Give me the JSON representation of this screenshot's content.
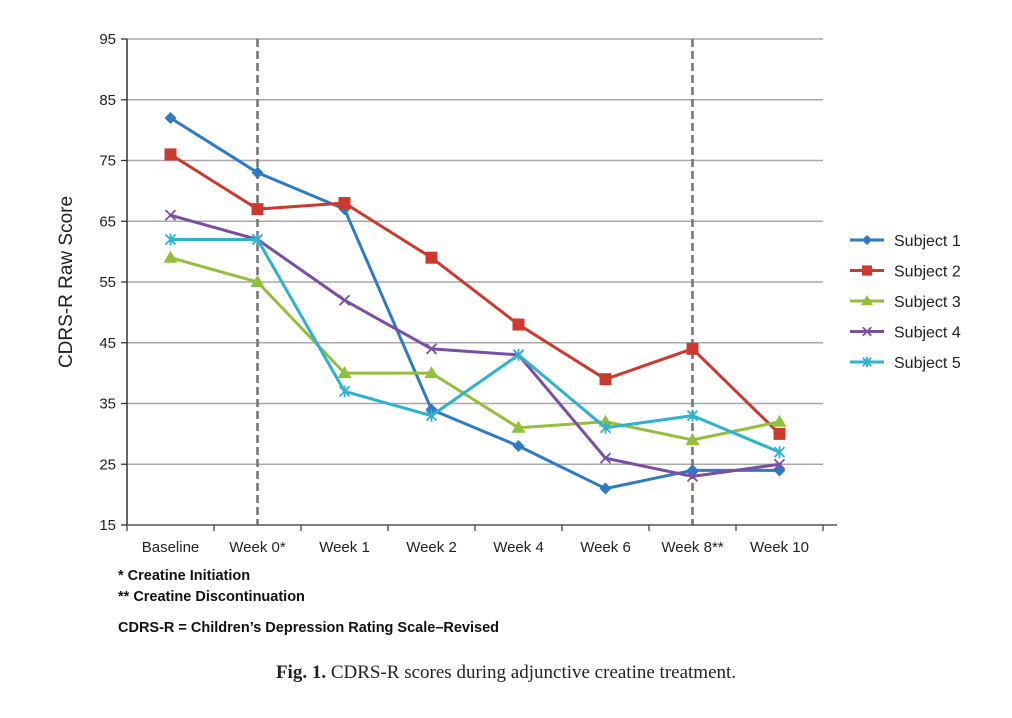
{
  "chart_data": {
    "type": "line",
    "title": "",
    "xlabel": "",
    "ylabel": "CDRS-R Raw Score",
    "ylim": [
      15,
      95
    ],
    "yticks": [
      15,
      25,
      35,
      45,
      55,
      65,
      75,
      85,
      95
    ],
    "grid": true,
    "legend_position": "right",
    "categories": [
      "Baseline",
      "Week 0*",
      "Week 1",
      "Week 2",
      "Week 4",
      "Week 6",
      "Week 8**",
      "Week 10"
    ],
    "reference_lines": [
      {
        "category": "Week 0*",
        "style": "dashed",
        "meaning": "Creatine Initiation"
      },
      {
        "category": "Week 8**",
        "style": "dashed",
        "meaning": "Creatine Discontinuation"
      }
    ],
    "series": [
      {
        "name": "Subject 1",
        "color": "#2f7ac2",
        "marker": "diamond",
        "values": [
          82,
          73,
          67,
          34,
          28,
          21,
          24,
          24
        ]
      },
      {
        "name": "Subject 2",
        "color": "#cc3a2f",
        "marker": "square",
        "values": [
          76,
          67,
          68,
          59,
          48,
          39,
          44,
          30
        ]
      },
      {
        "name": "Subject 3",
        "color": "#93bf3c",
        "marker": "triangle",
        "values": [
          59,
          55,
          40,
          40,
          31,
          32,
          29,
          32
        ]
      },
      {
        "name": "Subject 4",
        "color": "#7a4fa3",
        "marker": "x",
        "values": [
          66,
          62,
          52,
          44,
          43,
          26,
          23,
          25
        ]
      },
      {
        "name": "Subject 5",
        "color": "#2eb3cf",
        "marker": "star",
        "values": [
          62,
          62,
          37,
          33,
          43,
          31,
          33,
          27
        ]
      }
    ]
  },
  "footnotes": {
    "initiation": "*  Creatine Initiation",
    "discontinuation": "** Creatine Discontinuation",
    "abbreviation": "CDRS-R = Children’s Depression Rating Scale–Revised"
  },
  "caption": {
    "label": "Fig. 1.",
    "text": " CDRS-R scores during adjunctive creatine treatment."
  }
}
